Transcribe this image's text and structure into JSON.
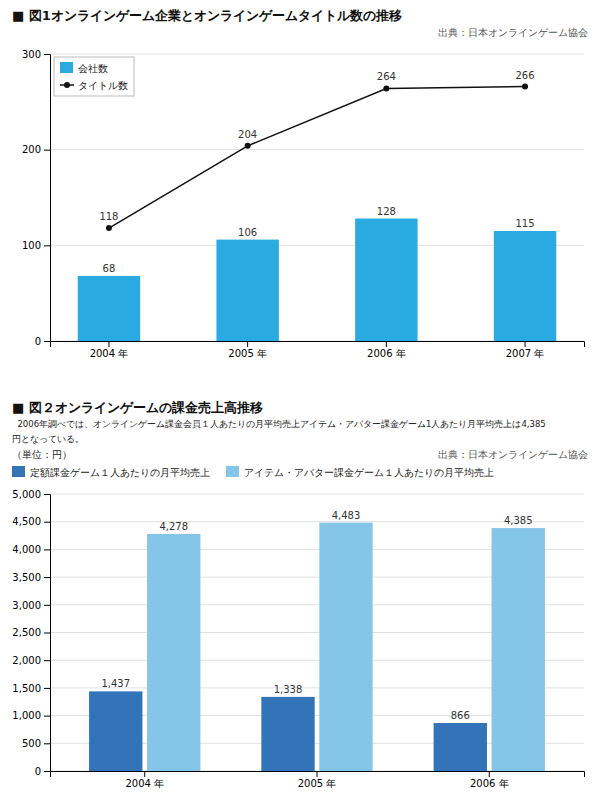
{
  "chart_data": [
    {
      "type": "bar",
      "title": "■ 図1オンラインゲーム企業とオンラインゲームタイトル数の推移",
      "annotations": [
        "出典：日本オンラインゲーム協会"
      ],
      "categories": [
        "2004 年",
        "2005 年",
        "2006 年",
        "2007 年"
      ],
      "series": [
        {
          "name": "会社数",
          "type": "bar",
          "color": "#29ABE2",
          "values": [
            68,
            106,
            128,
            115
          ]
        },
        {
          "name": "タイトル数",
          "type": "line",
          "color": "#111111",
          "marker": "circle",
          "values": [
            118,
            204,
            264,
            266
          ]
        }
      ],
      "ylim": [
        0,
        300
      ],
      "yticks": [
        0,
        100,
        200,
        300
      ],
      "grid": true,
      "legend": "upper left",
      "data_labels": true
    },
    {
      "type": "bar",
      "title": "■ 図２オンラインゲームの課金売上高推移",
      "annotations": [
        "  2006年調べでは、オンラインゲーム課金会員１人あたりの月平均売上アイテム・アバター課金ゲーム1人あたり月平均売上は4,385",
        "円となっている。",
        "出典：日本オンラインゲーム協会"
      ],
      "y_label": "（単位：円）",
      "categories": [
        "2004 年",
        "2005 年",
        "2006 年"
      ],
      "series": [
        {
          "name": "定額課金ゲーム１人あたりの月平均売上",
          "color": "#3373B8",
          "values": [
            1437,
            1338,
            866
          ],
          "value_labels": [
            "1,437",
            "1,338",
            "866"
          ]
        },
        {
          "name": "アイテム・アバター課金ゲーム１人あたりの月平均売上",
          "color": "#85C5E8",
          "values": [
            4278,
            4483,
            4385
          ],
          "value_labels": [
            "4,278",
            "4,483",
            "4,385"
          ]
        }
      ],
      "ylim": [
        0,
        5000
      ],
      "yticks": [
        0,
        500,
        {
          "value": 1000,
          "label": "1,000"
        },
        {
          "value": 1500,
          "label": "1,500"
        },
        {
          "value": 2000,
          "label": "2,000"
        },
        {
          "value": 2500,
          "label": "2,500"
        },
        {
          "value": 3000,
          "label": "3,000"
        },
        {
          "value": 3500,
          "label": "3,500"
        },
        {
          "value": 4000,
          "label": "4,000"
        },
        {
          "value": 4500,
          "label": "4,500"
        },
        {
          "value": 5000,
          "label": "5,000"
        }
      ],
      "grid": true,
      "legend": "top",
      "data_labels": true
    }
  ]
}
